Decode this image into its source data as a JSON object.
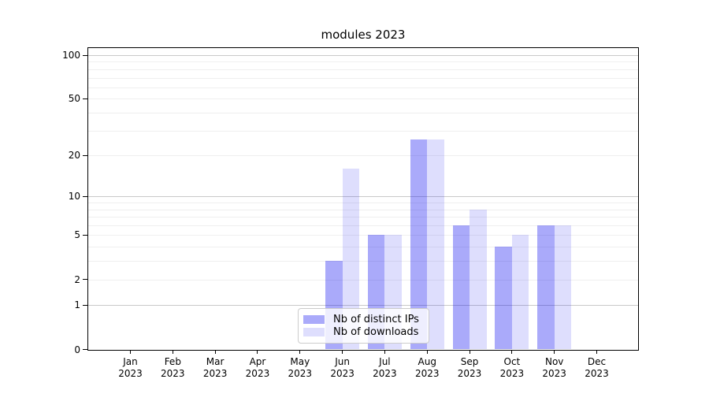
{
  "chart_data": {
    "type": "bar",
    "title": "modules 2023",
    "xlabel": "",
    "ylabel": "",
    "year_label": "2023",
    "categories": [
      "Jan",
      "Feb",
      "Mar",
      "Apr",
      "May",
      "Jun",
      "Jul",
      "Aug",
      "Sep",
      "Oct",
      "Nov",
      "Dec"
    ],
    "series": [
      {
        "name": "Nb of distinct IPs",
        "color": "rgba(10,10,240,0.345)",
        "values": [
          0,
          0,
          0,
          0,
          0,
          3,
          5,
          26,
          6,
          4,
          6,
          0
        ]
      },
      {
        "name": "Nb of downloads",
        "color": "rgba(10,10,240,0.135)",
        "values": [
          0,
          0,
          0,
          0,
          0,
          16,
          5,
          26,
          8,
          5,
          6,
          0
        ]
      }
    ],
    "y_scale": "log1p",
    "ylim": [
      0,
      112
    ],
    "y_ticks": [
      0,
      1,
      2,
      5,
      10,
      20,
      50,
      100
    ],
    "y_major_gridlines": [
      1,
      10,
      100
    ],
    "y_minor_gridlines": [
      2,
      3,
      4,
      5,
      6,
      7,
      8,
      9,
      20,
      30,
      40,
      50,
      60,
      70,
      80,
      90
    ],
    "grid": "horizontal",
    "legend_position": "lower center"
  },
  "colors": {
    "bar_distinct_ips_rendered": "#a8a8f8",
    "bar_downloads_rendered": "#dcdcfa",
    "gridline_major": "#c9c9c9",
    "gridline_minor": "#efefef",
    "axis": "#000000",
    "legend_border": "#cccccc",
    "background": "#ffffff"
  }
}
